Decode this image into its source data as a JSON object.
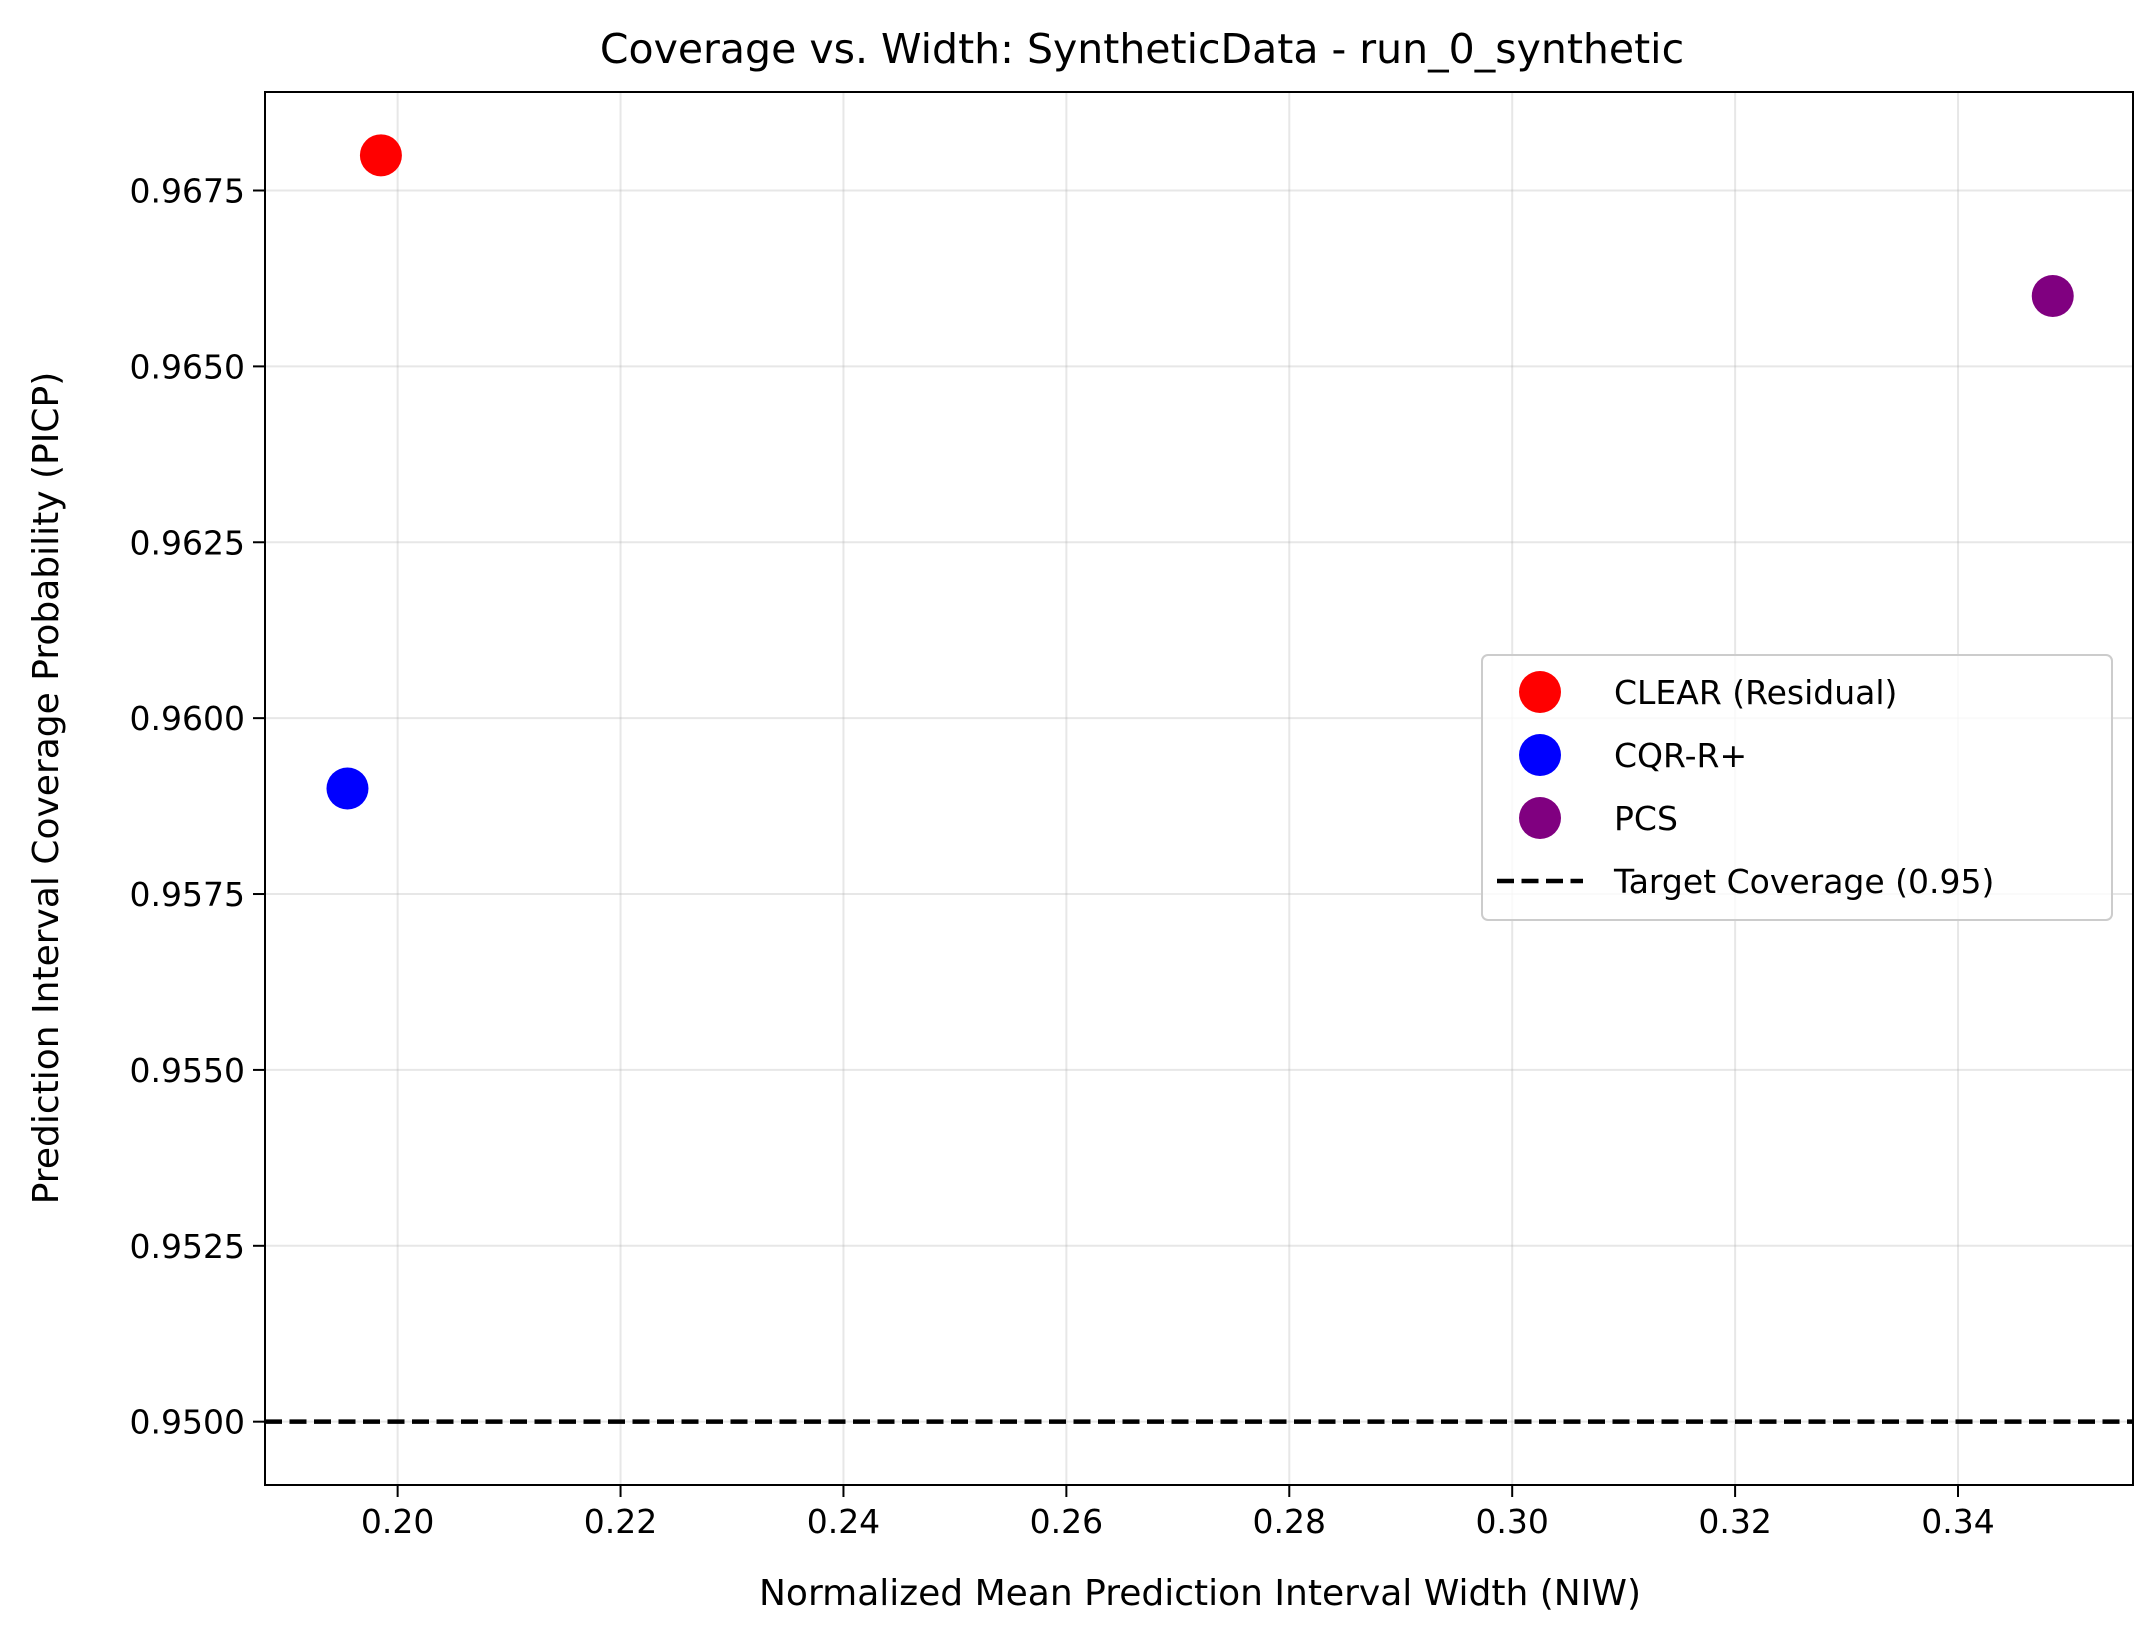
{
  "chart_data": {
    "type": "scatter",
    "title": "Coverage vs. Width: SyntheticData - run_0_synthetic",
    "xlabel": "Normalized Mean Prediction Interval Width (NIW)",
    "ylabel": "Prediction Interval Coverage Probability (PICP)",
    "xlim": [
      0.1881,
      0.3557
    ],
    "ylim": [
      0.9491,
      0.9689
    ],
    "xticks": [
      0.2,
      0.22,
      0.24,
      0.26,
      0.28,
      0.3,
      0.32,
      0.34
    ],
    "xtick_labels": [
      "0.20",
      "0.22",
      "0.24",
      "0.26",
      "0.28",
      "0.30",
      "0.32",
      "0.34"
    ],
    "yticks": [
      0.95,
      0.9525,
      0.955,
      0.9575,
      0.96,
      0.9625,
      0.965,
      0.9675
    ],
    "ytick_labels": [
      "0.9500",
      "0.9525",
      "0.9550",
      "0.9575",
      "0.9600",
      "0.9625",
      "0.9650",
      "0.9675"
    ],
    "grid": true,
    "legend_position": "center-right",
    "series": [
      {
        "name": "CLEAR (Residual)",
        "color": "#ff0000",
        "points": [
          {
            "x": 0.1985,
            "y": 0.968
          }
        ]
      },
      {
        "name": "CQR-R+",
        "color": "#0000ff",
        "points": [
          {
            "x": 0.1955,
            "y": 0.959
          }
        ]
      },
      {
        "name": "PCS",
        "color": "#800080",
        "points": [
          {
            "x": 0.3485,
            "y": 0.966
          }
        ]
      }
    ],
    "reference_lines": [
      {
        "name": "Target Coverage (0.95)",
        "orientation": "horizontal",
        "value": 0.95,
        "color": "#000000",
        "style": "dashed"
      }
    ]
  }
}
